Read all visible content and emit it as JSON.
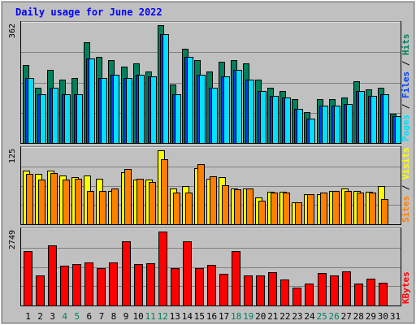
{
  "title": "Daily usage for June 2022",
  "colors": {
    "background": "#c0c0c0",
    "panel_bg": "#c0c0c0",
    "grid": "#808080",
    "title": "#0000ff",
    "hits": "#00805c",
    "files": "#0040ff",
    "pages": "#00e0ff",
    "visits": "#ffff00",
    "sites": "#ff8000",
    "kbytes": "#ff0000",
    "weekend_label": "#00805c",
    "day_label": "#000000"
  },
  "chart_data": [
    {
      "type": "bar",
      "panel": "top",
      "ymax_label": "362",
      "ylim": [
        0,
        362
      ],
      "side_labels": [
        "Pages",
        "Files",
        "Hits"
      ],
      "categories": [
        "1",
        "2",
        "3",
        "4",
        "5",
        "6",
        "7",
        "8",
        "9",
        "10",
        "11",
        "12",
        "13",
        "14",
        "15",
        "16",
        "17",
        "18",
        "19",
        "20",
        "21",
        "22",
        "23",
        "24",
        "25",
        "26",
        "27",
        "28",
        "29",
        "30",
        "31"
      ],
      "series": [
        {
          "name": "Hits",
          "values": [
            240,
            170,
            225,
            195,
            200,
            310,
            265,
            255,
            235,
            245,
            220,
            362,
            180,
            290,
            255,
            220,
            250,
            255,
            245,
            195,
            170,
            160,
            135,
            95,
            135,
            135,
            140,
            190,
            165,
            170,
            90
          ]
        },
        {
          "name": "Files",
          "values": [
            200,
            150,
            170,
            150,
            150,
            260,
            200,
            210,
            200,
            210,
            205,
            335,
            150,
            265,
            210,
            170,
            205,
            225,
            195,
            160,
            145,
            140,
            105,
            75,
            115,
            115,
            120,
            160,
            145,
            150,
            82
          ]
        },
        {
          "name": "Pages",
          "values": [
            200,
            150,
            170,
            150,
            150,
            260,
            200,
            210,
            200,
            210,
            205,
            335,
            150,
            265,
            210,
            170,
            205,
            225,
            195,
            160,
            145,
            140,
            105,
            75,
            115,
            115,
            120,
            160,
            145,
            150,
            82
          ]
        }
      ]
    },
    {
      "type": "bar",
      "panel": "middle",
      "ymax_label": "125",
      "ylim": [
        0,
        125
      ],
      "side_labels": [
        "Sites",
        "Visits"
      ],
      "categories": [
        "1",
        "2",
        "3",
        "4",
        "5",
        "6",
        "7",
        "8",
        "9",
        "10",
        "11",
        "12",
        "13",
        "14",
        "15",
        "16",
        "17",
        "18",
        "19",
        "20",
        "21",
        "22",
        "23",
        "24",
        "25",
        "26",
        "27",
        "28",
        "29",
        "30",
        "31"
      ],
      "series": [
        {
          "name": "Visits",
          "values": [
            90,
            85,
            91,
            82,
            80,
            83,
            77,
            57,
            88,
            75,
            75,
            125,
            60,
            65,
            95,
            77,
            80,
            60,
            60,
            45,
            55,
            55,
            37,
            51,
            51,
            57,
            60,
            57,
            55,
            65,
            0
          ]
        },
        {
          "name": "Sites",
          "values": [
            85,
            76,
            87,
            76,
            77,
            57,
            57,
            61,
            94,
            77,
            71,
            110,
            54,
            53,
            101,
            81,
            66,
            59,
            60,
            40,
            54,
            54,
            37,
            51,
            53,
            57,
            56,
            53,
            53,
            42,
            0
          ]
        }
      ]
    },
    {
      "type": "bar",
      "panel": "bottom",
      "ymax_label": "2749",
      "ylim": [
        0,
        2749
      ],
      "side_labels": [
        "KBytes"
      ],
      "categories": [
        "1",
        "2",
        "3",
        "4",
        "5",
        "6",
        "7",
        "8",
        "9",
        "10",
        "11",
        "12",
        "13",
        "14",
        "15",
        "16",
        "17",
        "18",
        "19",
        "20",
        "21",
        "22",
        "23",
        "24",
        "25",
        "26",
        "27",
        "28",
        "29",
        "30",
        "31"
      ],
      "series": [
        {
          "name": "KBytes",
          "values": [
            2020,
            1130,
            2250,
            1480,
            1540,
            1610,
            1400,
            1590,
            2390,
            1550,
            1580,
            2749,
            1380,
            2390,
            1400,
            1500,
            1190,
            2010,
            1130,
            1130,
            1230,
            970,
            660,
            830,
            1200,
            1130,
            1260,
            830,
            1000,
            850,
            0
          ]
        }
      ]
    }
  ],
  "x_labels": [
    {
      "text": "1",
      "weekend": false
    },
    {
      "text": "2",
      "weekend": false
    },
    {
      "text": "3",
      "weekend": false
    },
    {
      "text": "4",
      "weekend": true
    },
    {
      "text": "5",
      "weekend": true
    },
    {
      "text": "6",
      "weekend": false
    },
    {
      "text": "7",
      "weekend": false
    },
    {
      "text": "8",
      "weekend": false
    },
    {
      "text": "9",
      "weekend": false
    },
    {
      "text": "10",
      "weekend": false
    },
    {
      "text": "11",
      "weekend": true
    },
    {
      "text": "12",
      "weekend": true
    },
    {
      "text": "13",
      "weekend": false
    },
    {
      "text": "14",
      "weekend": false
    },
    {
      "text": "15",
      "weekend": false
    },
    {
      "text": "16",
      "weekend": false
    },
    {
      "text": "17",
      "weekend": false
    },
    {
      "text": "18",
      "weekend": true
    },
    {
      "text": "19",
      "weekend": true
    },
    {
      "text": "20",
      "weekend": false
    },
    {
      "text": "21",
      "weekend": false
    },
    {
      "text": "22",
      "weekend": false
    },
    {
      "text": "23",
      "weekend": false
    },
    {
      "text": "24",
      "weekend": false
    },
    {
      "text": "25",
      "weekend": true
    },
    {
      "text": "26",
      "weekend": true
    },
    {
      "text": "27",
      "weekend": false
    },
    {
      "text": "28",
      "weekend": false
    },
    {
      "text": "29",
      "weekend": false
    },
    {
      "text": "30",
      "weekend": false
    },
    {
      "text": "31",
      "weekend": false
    }
  ]
}
